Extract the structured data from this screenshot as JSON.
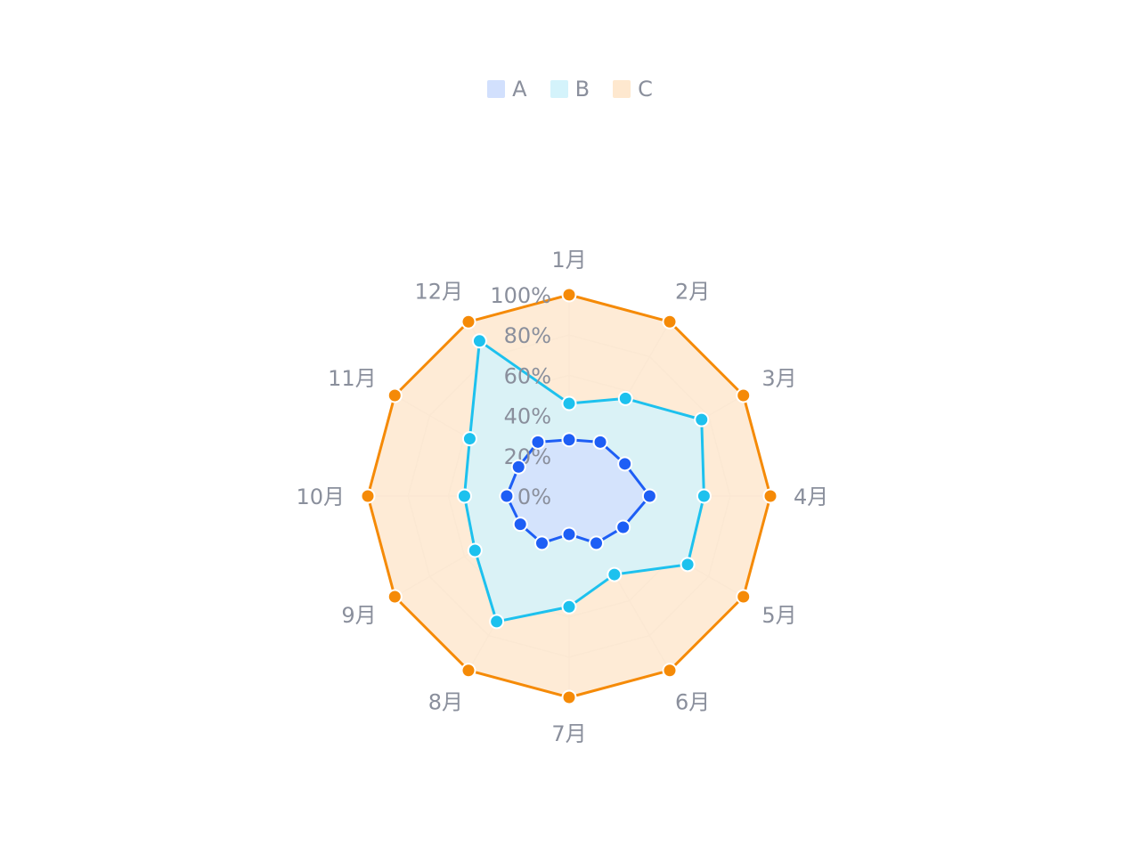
{
  "chart_data": {
    "type": "radar",
    "categories": [
      "1月",
      "2月",
      "3月",
      "4月",
      "5月",
      "6月",
      "7月",
      "8月",
      "9月",
      "10月",
      "11月",
      "12月"
    ],
    "radial_ticks": [
      "0%",
      "20%",
      "40%",
      "60%",
      "80%",
      "100%"
    ],
    "range": [
      0,
      100
    ],
    "legend_position": "top-center",
    "series": [
      {
        "name": "A",
        "color": "#1e5ef5",
        "fill": "#d2e0fd",
        "values": [
          28,
          31,
          32,
          40,
          31,
          27,
          19,
          27,
          28,
          31,
          29,
          31
        ]
      },
      {
        "name": "B",
        "color": "#1dc1ee",
        "fill": "#d4f3fb",
        "values": [
          46,
          56,
          76,
          67,
          68,
          45,
          55,
          72,
          54,
          52,
          57,
          89
        ]
      },
      {
        "name": "C",
        "color": "#f58a07",
        "fill": "#fee8cf",
        "values": [
          100,
          100,
          100,
          100,
          100,
          100,
          100,
          100,
          100,
          100,
          100,
          100
        ]
      }
    ]
  }
}
